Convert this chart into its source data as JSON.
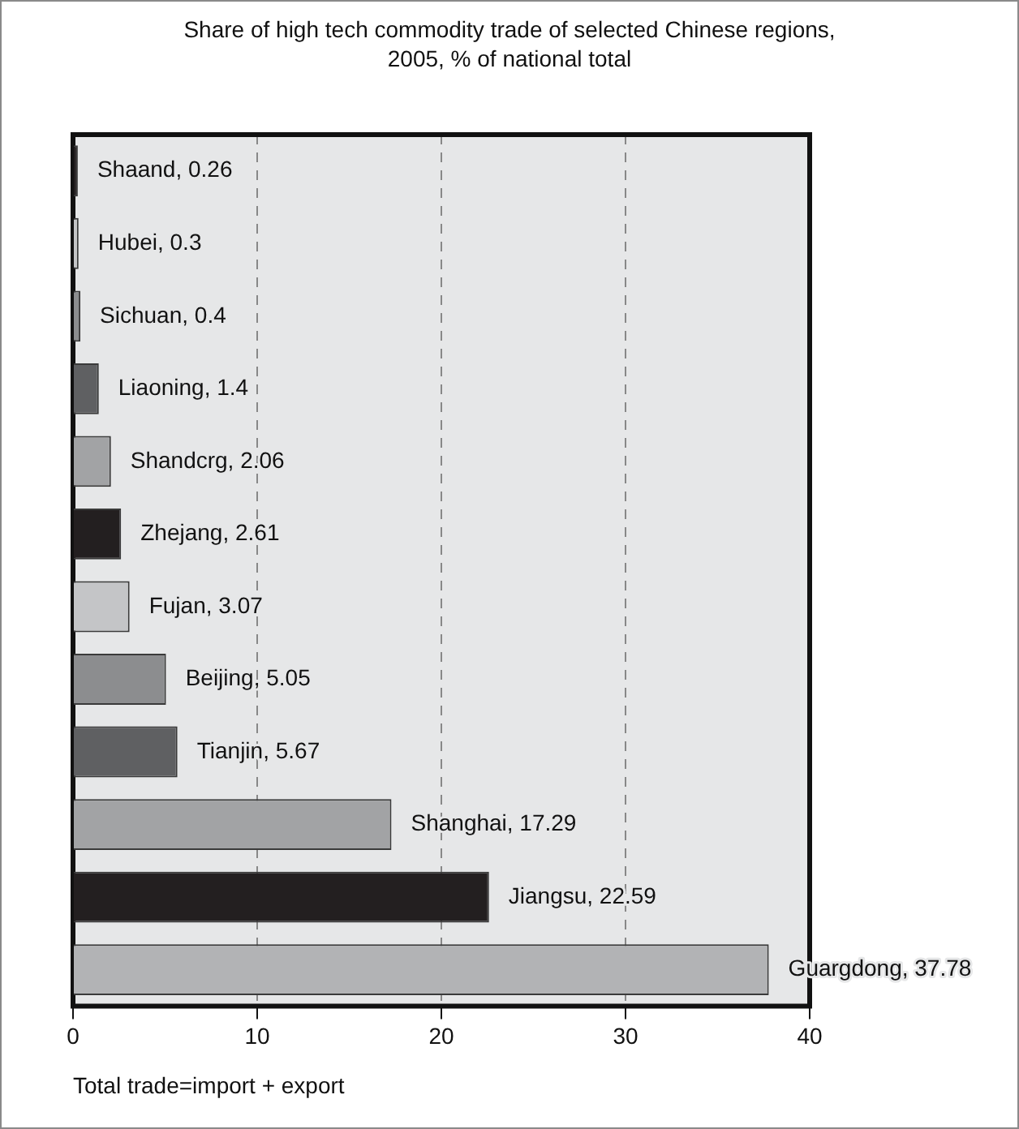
{
  "chart_data": {
    "type": "bar",
    "orientation": "horizontal",
    "title": "Share of high tech commodity trade of selected Chinese regions,\n2005, % of national total",
    "categories": [
      null,
      null,
      null,
      null,
      null,
      null,
      null,
      null,
      null,
      null,
      null,
      null
    ],
    "values": [
      0.26,
      0.3,
      0.4,
      1.4,
      2.06,
      2.61,
      3.07,
      5.05,
      5.67,
      17.29,
      22.59,
      37.78
    ],
    "value_labels": [
      "Shaand, 0.26",
      "Hubei, 0.3",
      "Sichuan, 0.4",
      "Liaoning, 1.4",
      "Shandcrg, 2.06",
      "Zhejang, 2.61",
      "Fujan, 3.07",
      "Beijing, 5.05",
      "Tianjin, 5.67",
      "Shanghai, 17.29",
      "Jiangsu, 22.59",
      "Guargdong, 37.78"
    ],
    "colors": [
      "#231f20",
      "#c4c5c7",
      "#8c8d8f",
      "#5f6062",
      "#a2a3a5",
      "#231f20",
      "#c4c5c7",
      "#8c8d8f",
      "#5f6062",
      "#a2a3a5",
      "#231f20",
      "#b2b3b5"
    ],
    "xlim": [
      0,
      40
    ],
    "xticks": [
      0,
      10,
      20,
      30,
      40
    ],
    "grid": "x",
    "annotations": [
      "Total trade=import + export"
    ]
  }
}
